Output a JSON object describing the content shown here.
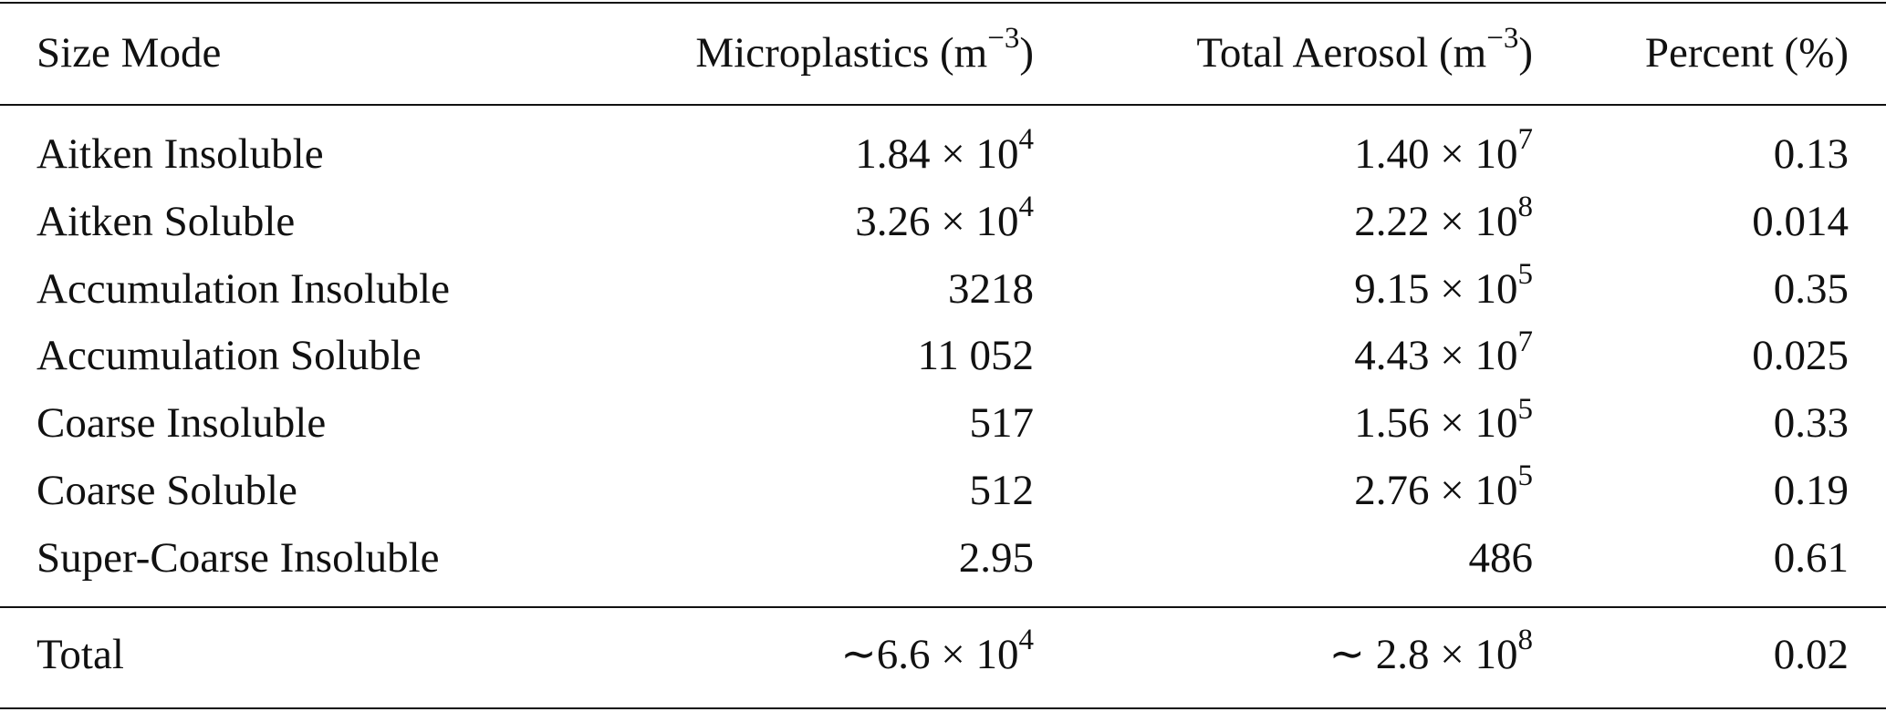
{
  "table": {
    "header": [
      "Size Mode",
      {
        "text": "Microplastics (m",
        "sup": "−3",
        "tail": ")"
      },
      {
        "text": "Total Aerosol (m",
        "sup": "−3",
        "tail": ")"
      },
      "Percent (%)"
    ],
    "rows": [
      [
        "Aitken Insoluble",
        {
          "text": "1.84 × 10",
          "sup": "4"
        },
        {
          "text": "1.40 × 10",
          "sup": "7"
        },
        "0.13"
      ],
      [
        "Aitken Soluble",
        {
          "text": "3.26 × 10",
          "sup": "4"
        },
        {
          "text": "2.22 × 10",
          "sup": "8"
        },
        "0.014"
      ],
      [
        "Accumulation Insoluble",
        "3218",
        {
          "text": "9.15 × 10",
          "sup": "5"
        },
        "0.35"
      ],
      [
        "Accumulation Soluble",
        "11 052",
        {
          "text": "4.43 × 10",
          "sup": "7"
        },
        "0.025"
      ],
      [
        "Coarse Insoluble",
        "517",
        {
          "text": "1.56 × 10",
          "sup": "5"
        },
        "0.33"
      ],
      [
        "Coarse Soluble",
        "512",
        {
          "text": "2.76 × 10",
          "sup": "5"
        },
        "0.19"
      ],
      [
        "Super-Coarse Insoluble",
        "2.95",
        "486",
        "0.61"
      ]
    ],
    "total": [
      "Total",
      {
        "text": "∼6.6 × 10",
        "sup": "4"
      },
      {
        "text": "∼ 2.8 × 10",
        "sup": "8"
      },
      "0.02"
    ]
  }
}
